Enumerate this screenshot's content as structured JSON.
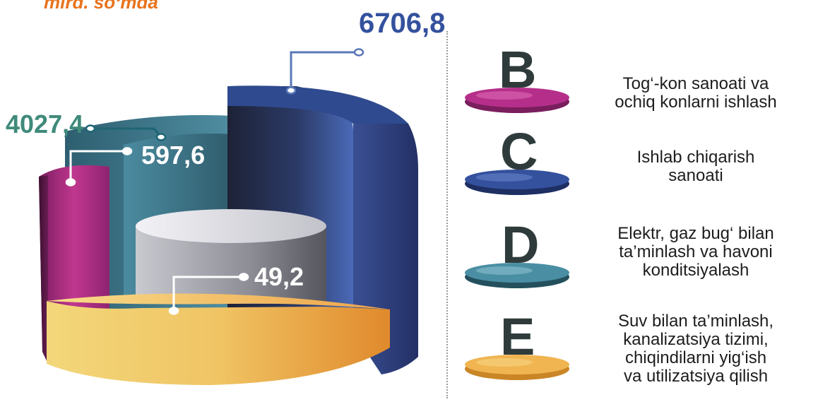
{
  "header": {
    "unit_label": "mlrd. so‘mda"
  },
  "colors": {
    "B": "#b52f8a",
    "C": "#34519e",
    "D": "#3f7f92",
    "E": "#e8a23e",
    "gray": "#9e9ea6",
    "accent": "#e8731c"
  },
  "chart_data": {
    "type": "3d-cylinder-bar",
    "unit": "mlrd. so‘mda",
    "series": [
      {
        "code": "B",
        "label": "Tog‘-kon sanoati va ochiq konlarni ishlash",
        "value": 597.6,
        "value_text": "597,6"
      },
      {
        "code": "C",
        "label": "Ishlab chiqarish sanoati",
        "value": 6706.8,
        "value_text": "6706,8"
      },
      {
        "code": "D",
        "label": "Elektr, gaz bug‘ bilan ta’minlash va havoni konditsiyalash",
        "value": 4027.4,
        "value_text": "4027,4"
      },
      {
        "code": "E",
        "label": "Suv bilan ta’minlash, kanalizatsiya tizimi, chiqindilarni yig‘ish va utilizatsiya qilish",
        "value": 49.2,
        "value_text": "49,2"
      }
    ]
  },
  "legend": [
    {
      "letter": "B",
      "text": "Tog‘-kon sanoati va\nochiq konlarni ishlash"
    },
    {
      "letter": "C",
      "text": "Ishlab chiqarish\nsanoati"
    },
    {
      "letter": "D",
      "text": "Elektr, gaz bug‘ bilan\nta’minlash va havoni\nkonditsiyalash"
    },
    {
      "letter": "E",
      "text": "Suv bilan ta’minlash,\nkanalizatsiya tizimi,\nchiqindilarni yig‘ish\nva utilizatsiya qilish"
    }
  ]
}
